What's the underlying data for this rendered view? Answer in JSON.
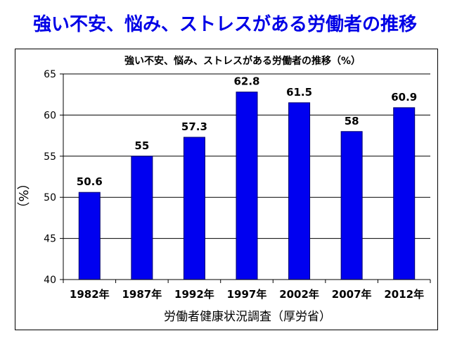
{
  "page_title": "強い不安、悩み、ストレスがある労働者の推移",
  "colors": {
    "title": "#0000e6",
    "bar": "#0000f0",
    "axis": "#000000"
  },
  "chart_data": {
    "type": "bar",
    "title": "強い不安、悩み、ストレスがある労働者の推移（%）",
    "xlabel": "労働者健康状況調査（厚労省）",
    "ylabel": "（%）",
    "categories": [
      "1982年",
      "1987年",
      "1992年",
      "1997年",
      "2002年",
      "2007年",
      "2012年"
    ],
    "values": [
      50.6,
      55,
      57.3,
      62.8,
      61.5,
      58,
      60.9
    ],
    "data_labels": [
      "50.6",
      "55",
      "57.3",
      "62.8",
      "61.5",
      "58",
      "60.9"
    ],
    "ylim": [
      40,
      65
    ],
    "yticks": [
      40,
      45,
      50,
      55,
      60,
      65
    ],
    "grid": true,
    "legend": "none"
  }
}
